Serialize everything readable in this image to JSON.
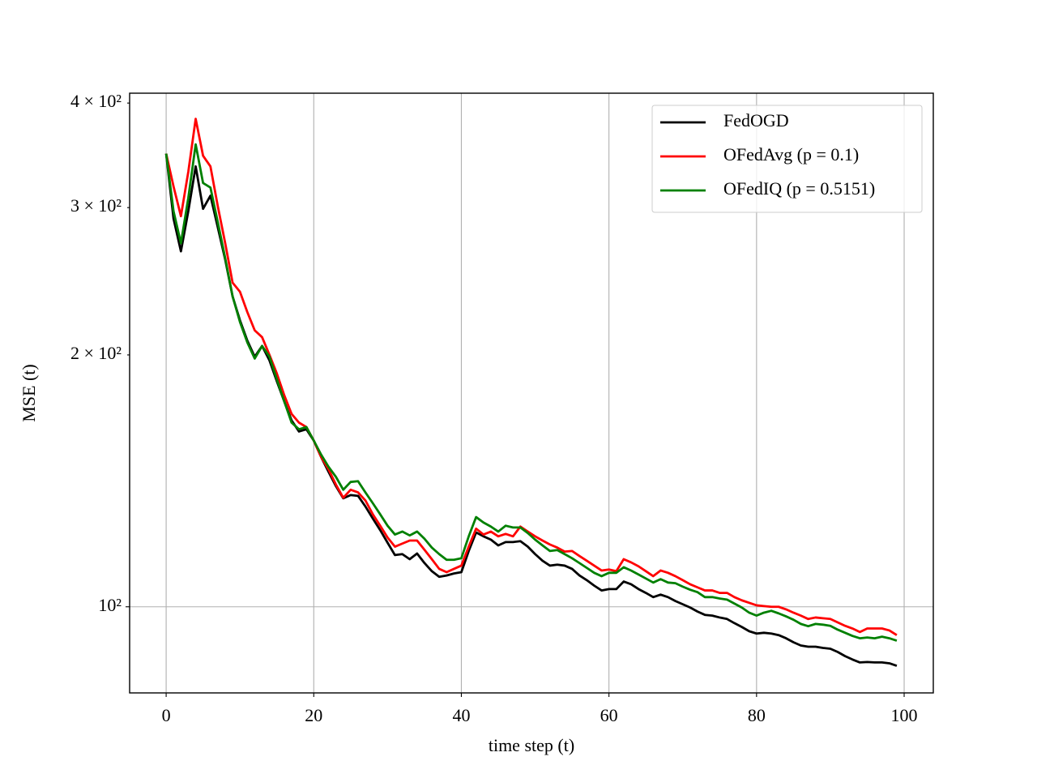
{
  "chart_data": {
    "type": "line",
    "xlabel": "time step (t)",
    "ylabel": "MSE (t)",
    "yscale": "log",
    "xlim": [
      -4.95,
      103.95
    ],
    "ylim": [
      78.9,
      411
    ],
    "xticks": [
      0,
      20,
      40,
      60,
      80,
      100
    ],
    "yticks": [
      {
        "value": 100,
        "label": "10²"
      }
    ],
    "yminorticks": [
      {
        "value": 200,
        "label": "2 × 10²"
      },
      {
        "value": 300,
        "label": "3 × 10²"
      },
      {
        "value": 400,
        "label": "4 × 10²"
      }
    ],
    "grid": true,
    "legend": "upper right",
    "x": [
      0,
      1,
      2,
      3,
      4,
      5,
      6,
      7,
      8,
      9,
      10,
      11,
      12,
      13,
      14,
      15,
      16,
      17,
      18,
      19,
      20,
      21,
      22,
      23,
      24,
      25,
      26,
      27,
      28,
      29,
      30,
      31,
      32,
      33,
      34,
      35,
      36,
      37,
      38,
      39,
      40,
      41,
      42,
      43,
      44,
      45,
      46,
      47,
      48,
      49,
      50,
      51,
      52,
      53,
      54,
      55,
      56,
      57,
      58,
      59,
      60,
      61,
      62,
      63,
      64,
      65,
      66,
      67,
      68,
      69,
      70,
      71,
      72,
      73,
      74,
      75,
      76,
      77,
      78,
      79,
      80,
      81,
      82,
      83,
      84,
      85,
      86,
      87,
      88,
      89,
      90,
      91,
      92,
      93,
      94,
      95,
      96,
      97,
      98,
      99
    ],
    "series": [
      {
        "name": "FedOGD",
        "color": "#000000",
        "values": [
          348,
          291,
          266,
          297,
          336,
          299,
          310,
          284,
          260,
          235,
          220,
          208,
          199,
          205,
          197,
          186,
          176,
          167,
          162,
          163,
          158,
          151,
          145,
          139.4,
          134.8,
          136,
          135.7,
          131.8,
          127.5,
          123.5,
          119.3,
          115.3,
          115.6,
          114,
          115.8,
          112.8,
          110.3,
          108.6,
          109,
          109.6,
          110,
          116.6,
          122.7,
          121.4,
          120.3,
          118.4,
          119.5,
          119.5,
          119.8,
          118,
          115.6,
          113.5,
          112,
          112.3,
          112,
          111,
          109,
          107.6,
          106,
          104.6,
          105,
          105,
          107.2,
          106.4,
          105,
          103.9,
          102.7,
          103.4,
          102.7,
          101.6,
          100.7,
          99.8,
          98.7,
          97.8,
          97.6,
          97.1,
          96.7,
          95.6,
          94.6,
          93.5,
          92.9,
          93.1,
          92.9,
          92.5,
          91.7,
          90.7,
          89.9,
          89.6,
          89.6,
          89.3,
          89.1,
          88.3,
          87.3,
          86.5,
          85.8,
          85.9,
          85.8,
          85.8,
          85.6,
          85
        ]
      },
      {
        "name": "OFedAvg (p = 0.1)",
        "color": "#ff0000",
        "values": [
          348,
          318,
          293,
          331,
          383,
          346,
          336,
          301,
          272,
          244,
          238,
          225,
          214,
          210,
          200,
          190,
          179,
          170,
          166,
          164,
          158,
          151,
          146,
          140,
          135,
          138,
          137,
          134,
          129,
          125,
          121,
          118,
          119,
          120,
          120,
          117,
          114,
          111,
          110,
          111,
          112,
          118,
          124,
          122,
          123,
          121.4,
          122.2,
          121.4,
          124.7,
          123,
          121.4,
          120,
          118.7,
          117.7,
          116.4,
          116.6,
          115,
          113.5,
          112,
          110.5,
          110.8,
          110.3,
          114,
          113,
          111.8,
          110.3,
          108.8,
          110.5,
          109.8,
          108.8,
          107.6,
          106.4,
          105.5,
          104.6,
          104.6,
          103.9,
          103.9,
          102.7,
          101.8,
          101.1,
          100.4,
          100.2,
          100,
          100,
          99.3,
          98.4,
          97.6,
          96.7,
          97.1,
          96.9,
          96.7,
          95.8,
          94.9,
          94.2,
          93.3,
          94.2,
          94.2,
          94.2,
          93.7,
          92.5
        ]
      },
      {
        "name": "OFedIQ (p = 0.5151)",
        "color": "#008000",
        "values": [
          348,
          297,
          272,
          308,
          357,
          321,
          317,
          288,
          261,
          235,
          219,
          207,
          198,
          205,
          199,
          187,
          176,
          166,
          163,
          164,
          158,
          152,
          147,
          143,
          138,
          141,
          141.3,
          137,
          133,
          129,
          125,
          122,
          123,
          121.7,
          123,
          120.6,
          117.7,
          115.6,
          113.8,
          113.8,
          114.3,
          121.4,
          128,
          126.1,
          124.7,
          123,
          125,
          124.4,
          124.4,
          122.5,
          120.3,
          118.4,
          116.6,
          116.9,
          115.6,
          114.3,
          112.8,
          111.3,
          109.8,
          108.8,
          109.8,
          109.8,
          111.5,
          110.5,
          109.3,
          108.1,
          106.9,
          107.9,
          106.9,
          106.7,
          105.7,
          104.8,
          104.1,
          102.7,
          102.7,
          102.3,
          102,
          100.9,
          99.8,
          98.4,
          97.6,
          98.4,
          98.9,
          98.2,
          97.4,
          96.5,
          95.4,
          94.8,
          95.4,
          95.2,
          94.9,
          93.9,
          93.1,
          92.3,
          91.7,
          91.9,
          91.7,
          92.1,
          91.7,
          91.1
        ]
      }
    ]
  }
}
